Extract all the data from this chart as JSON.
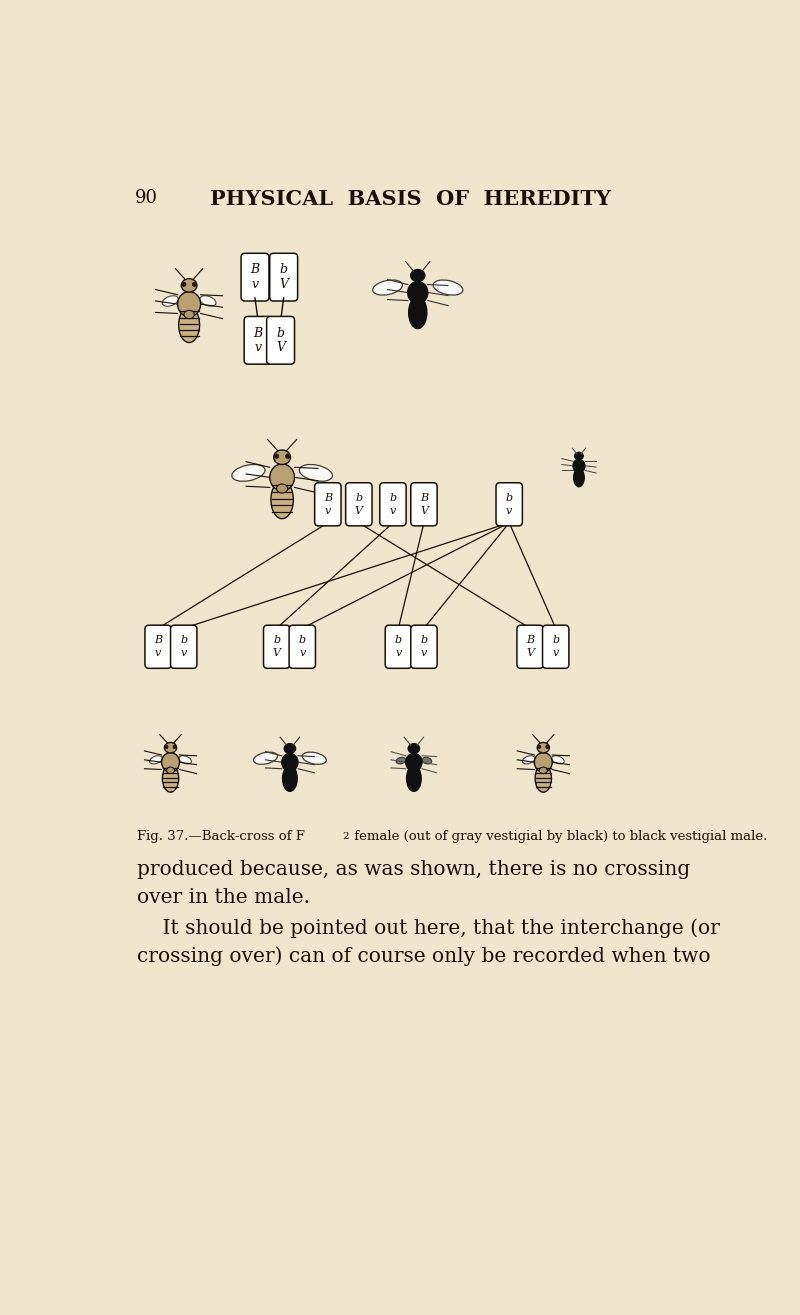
{
  "bg_color": "#f0e6ce",
  "page_num": "90",
  "header": "PHYSICAL  BASIS  OF  HEREDITY",
  "caption_prefix": "Fig. 37.",
  "caption_dash": "—",
  "caption_body": "Back-cross of ",
  "caption_f2": "F",
  "caption_sub": "2",
  "caption_rest": " female (out of gray vestigial by black) to black vestigial male.",
  "para1_line1": "produced because, as was shown, there is no crossing",
  "para1_line2": "over in the male.",
  "para2_line1": "    It should be pointed out here, that the interchange (or",
  "para2_line2": "crossing over) can of course only be recorded when two",
  "text_color": "#1a1008",
  "line_color": "#1a1008",
  "chrom_top_row": [
    [
      "B",
      "v"
    ],
    [
      "b",
      "V"
    ]
  ],
  "chrom_mid_row_female": [
    [
      "B",
      "v"
    ],
    [
      "b",
      "V"
    ],
    [
      "b",
      "v"
    ],
    [
      "B",
      "V"
    ]
  ],
  "chrom_mid_row_male": [
    [
      "b",
      "v"
    ]
  ],
  "chrom_bot_pairs": [
    [
      "B",
      "v",
      "b",
      "v"
    ],
    [
      "b",
      "V",
      "b",
      "v"
    ],
    [
      "b",
      "v",
      "b",
      "v"
    ],
    [
      "B",
      "V",
      "b",
      "v"
    ]
  ]
}
